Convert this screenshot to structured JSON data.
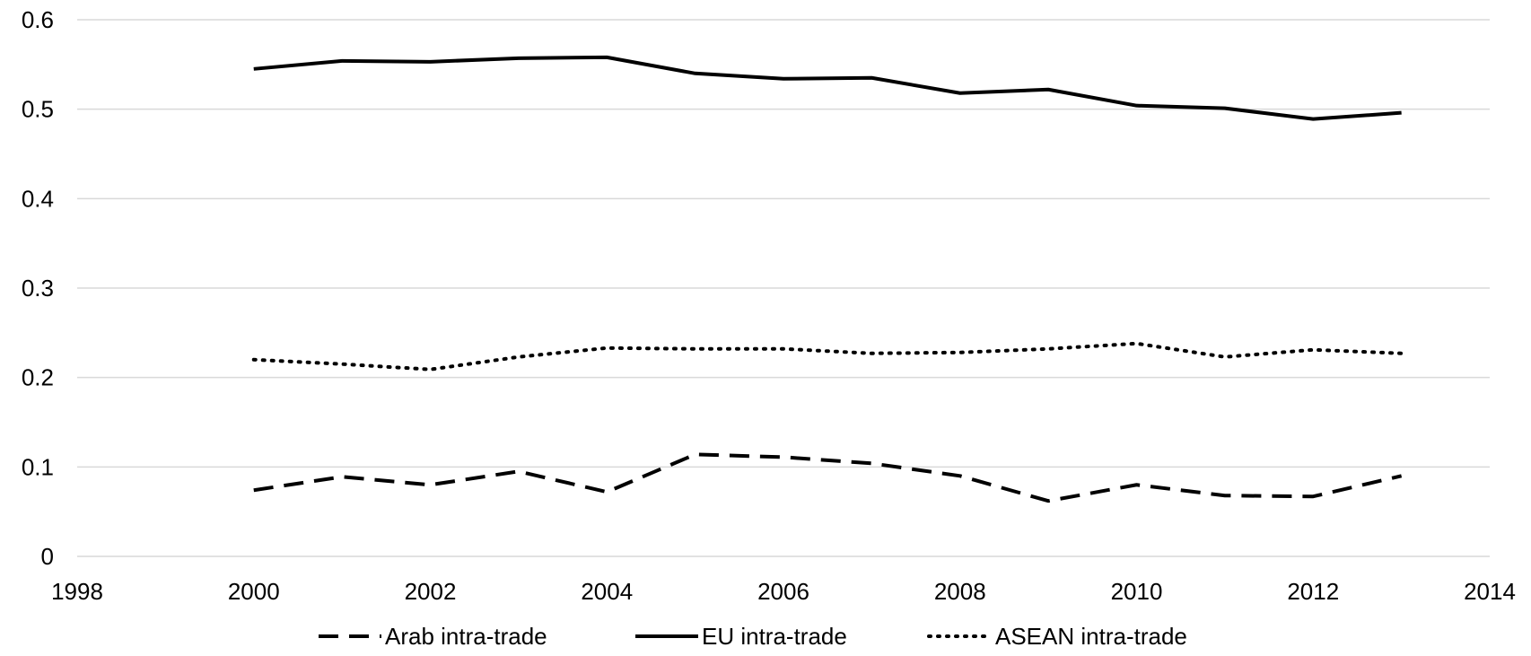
{
  "chart_data": {
    "type": "line",
    "title": "",
    "xlabel": "",
    "ylabel": "",
    "xlim": [
      1998,
      2014
    ],
    "ylim": [
      0,
      0.6
    ],
    "x_ticks": [
      1998,
      2000,
      2002,
      2004,
      2006,
      2008,
      2010,
      2012,
      2014
    ],
    "y_ticks": [
      0,
      0.1,
      0.2,
      0.3,
      0.4,
      0.5,
      0.6
    ],
    "grid": "horizontal",
    "legend_position": "bottom",
    "x": [
      2000,
      2001,
      2002,
      2003,
      2004,
      2005,
      2006,
      2007,
      2008,
      2009,
      2010,
      2011,
      2012,
      2013
    ],
    "series": [
      {
        "name": "Arab intra-trade",
        "style": "dashed",
        "color": "#000000",
        "values": [
          0.074,
          0.089,
          0.08,
          0.095,
          0.072,
          0.114,
          0.111,
          0.104,
          0.09,
          0.062,
          0.08,
          0.068,
          0.067,
          0.09
        ]
      },
      {
        "name": "EU intra-trade",
        "style": "solid",
        "color": "#000000",
        "values": [
          0.545,
          0.554,
          0.553,
          0.557,
          0.558,
          0.54,
          0.534,
          0.535,
          0.518,
          0.522,
          0.504,
          0.501,
          0.489,
          0.496
        ]
      },
      {
        "name": "ASEAN intra-trade",
        "style": "dotted",
        "color": "#000000",
        "values": [
          0.22,
          0.215,
          0.209,
          0.223,
          0.233,
          0.232,
          0.232,
          0.227,
          0.228,
          0.232,
          0.238,
          0.223,
          0.231,
          0.227
        ]
      }
    ]
  }
}
